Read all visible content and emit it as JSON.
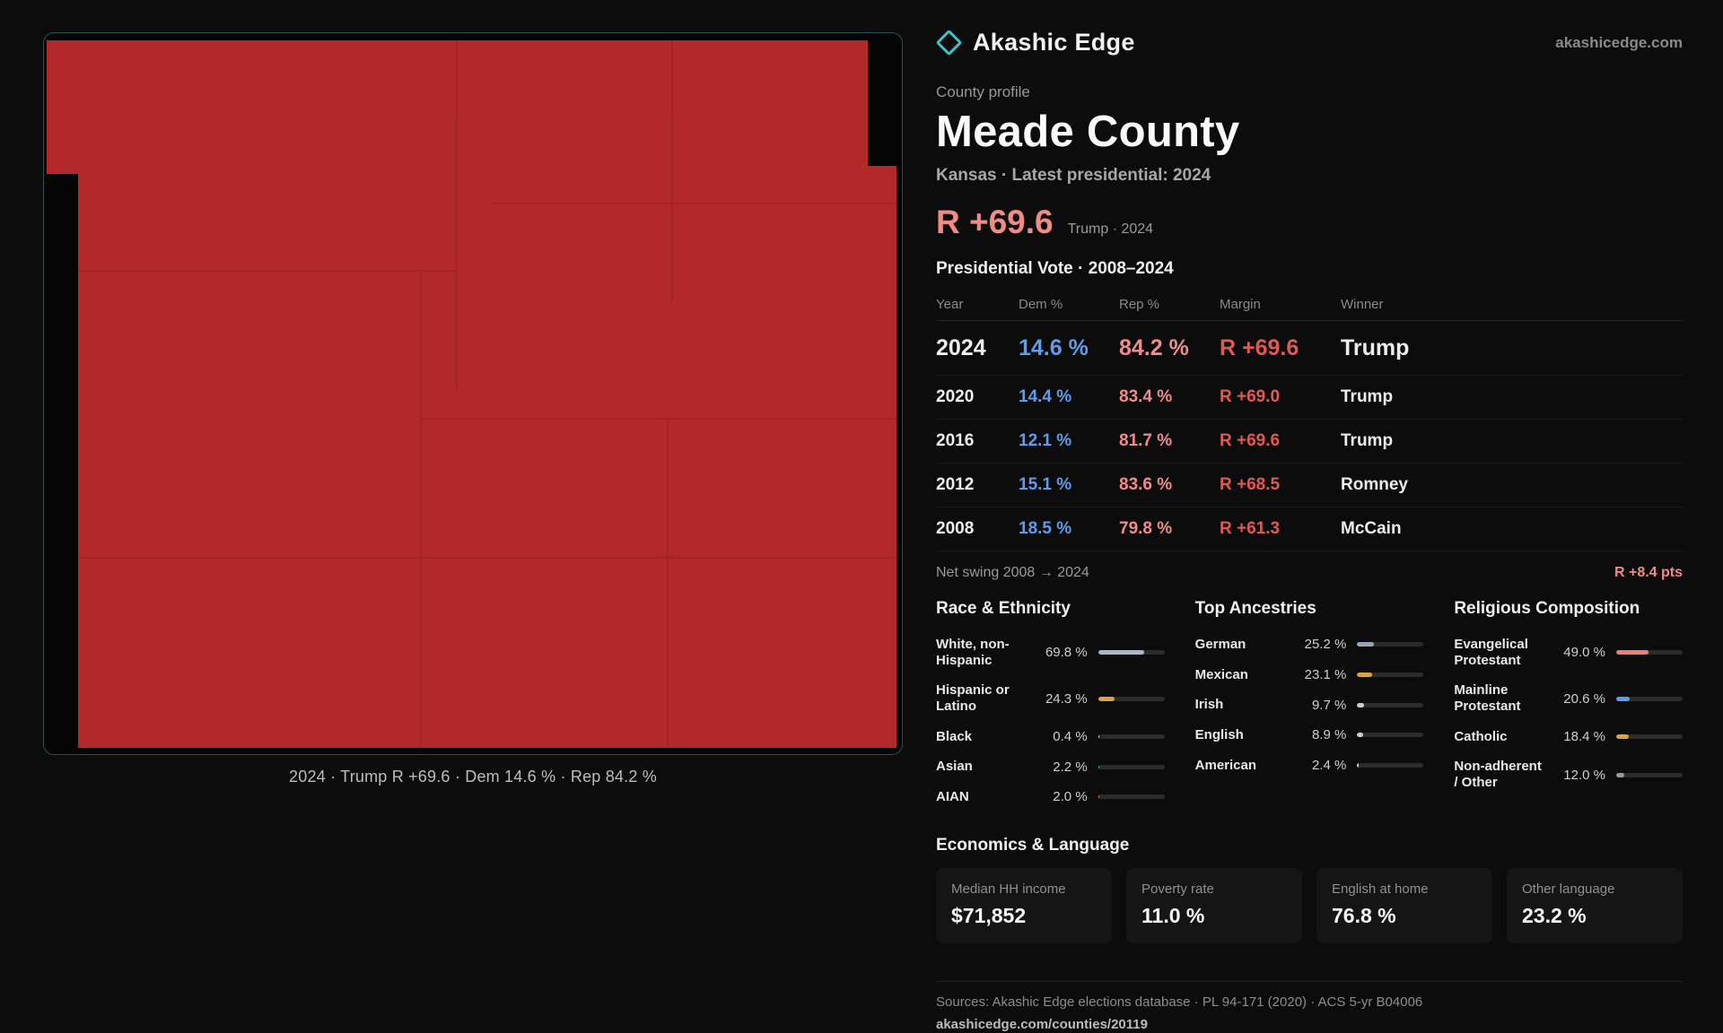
{
  "brand": {
    "name": "Akashic Edge",
    "domain": "akashicedge.com"
  },
  "profile": {
    "eyebrow": "County profile",
    "title": "Meade County",
    "subtitle": "Kansas · Latest presidential: 2024",
    "headline_margin": "R +69.6",
    "headline_note": "Trump · 2024"
  },
  "map": {
    "caption": "2024 · Trump R +69.6 · Dem 14.6 % · Rep 84.2 %",
    "fill_color": "#b32828",
    "border_color": "#27504f"
  },
  "vote_table": {
    "title": "Presidential Vote · 2008–2024",
    "columns": {
      "year": "Year",
      "dem": "Dem %",
      "rep": "Rep %",
      "margin": "Margin",
      "winner": "Winner"
    },
    "rows": [
      {
        "year": "2024",
        "dem": "14.6 %",
        "rep": "84.2 %",
        "margin": "R +69.6",
        "winner": "Trump"
      },
      {
        "year": "2020",
        "dem": "14.4 %",
        "rep": "83.4 %",
        "margin": "R +69.0",
        "winner": "Trump"
      },
      {
        "year": "2016",
        "dem": "12.1 %",
        "rep": "81.7 %",
        "margin": "R +69.6",
        "winner": "Trump"
      },
      {
        "year": "2012",
        "dem": "15.1 %",
        "rep": "83.6 %",
        "margin": "R +68.5",
        "winner": "Romney"
      },
      {
        "year": "2008",
        "dem": "18.5 %",
        "rep": "79.8 %",
        "margin": "R +61.3",
        "winner": "McCain"
      }
    ],
    "net_swing_label": "Net swing 2008 → 2024",
    "net_swing_value": "R +8.4 pts"
  },
  "demographics": {
    "race": {
      "title": "Race & Ethnicity",
      "items": [
        {
          "label": "White, non-Hispanic",
          "value": "69.8 %",
          "pct": 69.8,
          "color": "#a9b6cc"
        },
        {
          "label": "Hispanic or Latino",
          "value": "24.3 %",
          "pct": 24.3,
          "color": "#d9a441"
        },
        {
          "label": "Black",
          "value": "0.4 %",
          "pct": 0.4,
          "color": "#cfcfcf"
        },
        {
          "label": "Asian",
          "value": "2.2 %",
          "pct": 2.2,
          "color": "#54b07f"
        },
        {
          "label": "AIAN",
          "value": "2.0 %",
          "pct": 2.0,
          "color": "#dd8040"
        }
      ]
    },
    "ancestries": {
      "title": "Top Ancestries",
      "items": [
        {
          "label": "German",
          "value": "25.2 %",
          "pct": 25.2,
          "color": "#9aa6b4"
        },
        {
          "label": "Mexican",
          "value": "23.1 %",
          "pct": 23.1,
          "color": "#d9a441"
        },
        {
          "label": "Irish",
          "value": "9.7 %",
          "pct": 9.7,
          "color": "#cfcfcf"
        },
        {
          "label": "English",
          "value": "8.9 %",
          "pct": 8.9,
          "color": "#cfcfcf"
        },
        {
          "label": "American",
          "value": "2.4 %",
          "pct": 2.4,
          "color": "#cfcfcf"
        }
      ]
    },
    "religion": {
      "title": "Religious Composition",
      "items": [
        {
          "label": "Evangelical Protestant",
          "value": "49.0 %",
          "pct": 49.0,
          "color": "#ef7d77"
        },
        {
          "label": "Mainline Protestant",
          "value": "20.6 %",
          "pct": 20.6,
          "color": "#5c9ded"
        },
        {
          "label": "Catholic",
          "value": "18.4 %",
          "pct": 18.4,
          "color": "#d9a441"
        },
        {
          "label": "Non-adherent / Other",
          "value": "12.0 %",
          "pct": 12.0,
          "color": "#9a9a9a"
        }
      ]
    }
  },
  "economics": {
    "title": "Economics & Language",
    "stats": [
      {
        "label": "Median HH income",
        "value": "$71,852"
      },
      {
        "label": "Poverty rate",
        "value": "11.0 %"
      },
      {
        "label": "English at home",
        "value": "76.8 %"
      },
      {
        "label": "Other language",
        "value": "23.2 %"
      }
    ]
  },
  "footer": {
    "sources": "Sources: Akashic Edge elections database · PL 94-171 (2020) · ACS 5-yr B04006",
    "permalink": "akashicedge.com/counties/20119"
  }
}
